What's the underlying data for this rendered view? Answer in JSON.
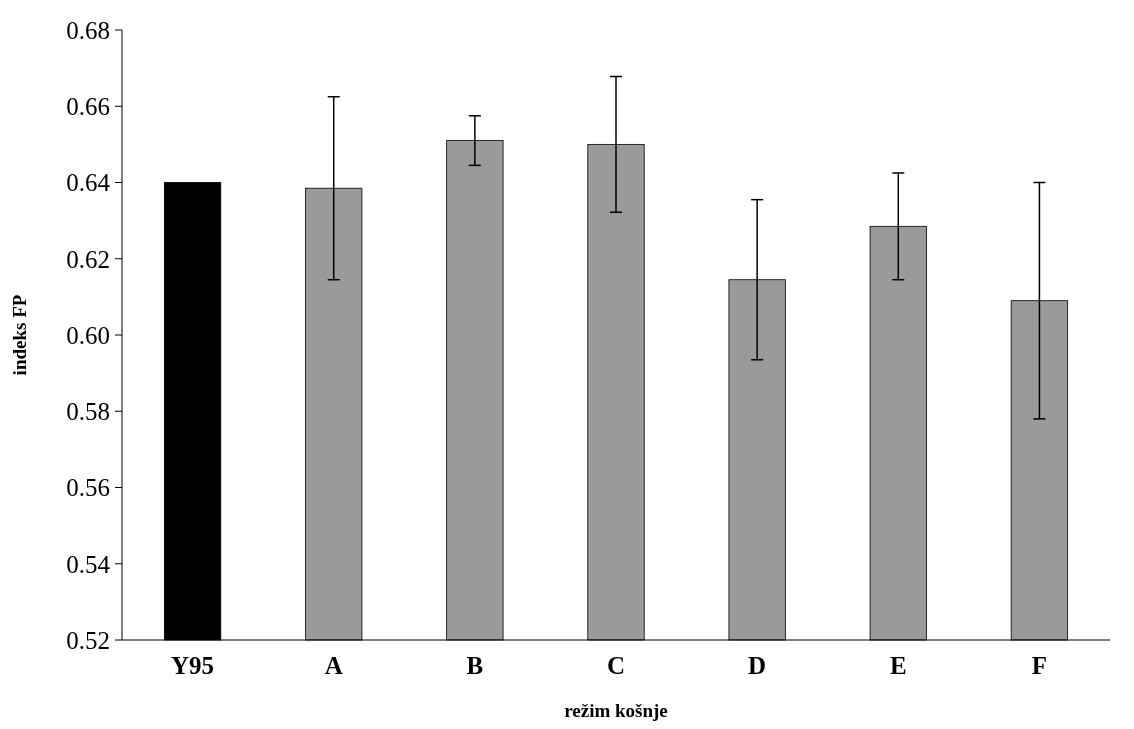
{
  "chart_data": {
    "type": "bar",
    "xlabel": "režim košnje",
    "ylabel": "indeks FP",
    "categories": [
      "Y95",
      "A",
      "B",
      "C",
      "D",
      "E",
      "F"
    ],
    "values": [
      0.64,
      0.6385,
      0.651,
      0.65,
      0.6145,
      0.6285,
      0.609
    ],
    "errors": [
      null,
      0.024,
      0.0065,
      0.0178,
      0.021,
      0.014,
      0.031
    ],
    "colors": [
      "#000000",
      "#9a9a9a",
      "#9a9a9a",
      "#9a9a9a",
      "#9a9a9a",
      "#9a9a9a",
      "#9a9a9a"
    ],
    "ylim": [
      0.52,
      0.68
    ],
    "yticks": [
      {
        "value": 0.52,
        "label": "0.52"
      },
      {
        "value": 0.54,
        "label": "0.54"
      },
      {
        "value": 0.56,
        "label": "0.56"
      },
      {
        "value": 0.58,
        "label": "0.58"
      },
      {
        "value": 0.6,
        "label": "0.60"
      },
      {
        "value": 0.62,
        "label": "0.62"
      },
      {
        "value": 0.64,
        "label": "0.64"
      },
      {
        "value": 0.66,
        "label": "0.66"
      },
      {
        "value": 0.68,
        "label": "0.68"
      }
    ],
    "grid": false
  }
}
